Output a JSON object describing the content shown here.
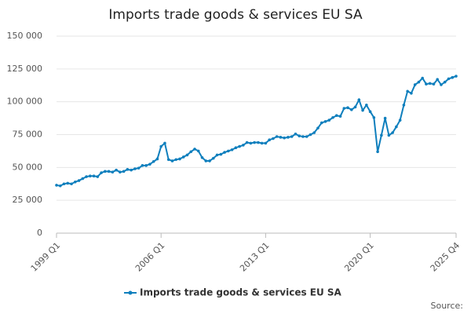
{
  "chart_data": {
    "type": "line",
    "title": "Imports trade goods & services EU SA",
    "categories": [
      "1999 Q1",
      null,
      null,
      null,
      null,
      null,
      null,
      null,
      null,
      null,
      null,
      null,
      null,
      null,
      null,
      null,
      null,
      null,
      null,
      null,
      null,
      null,
      null,
      null,
      null,
      null,
      null,
      null,
      "2006 Q1",
      null,
      null,
      null,
      null,
      null,
      null,
      null,
      null,
      null,
      null,
      null,
      null,
      null,
      null,
      null,
      null,
      null,
      null,
      null,
      null,
      null,
      null,
      null,
      null,
      null,
      null,
      null,
      "2013 Q1",
      null,
      null,
      null,
      null,
      null,
      null,
      null,
      null,
      null,
      null,
      null,
      null,
      null,
      null,
      null,
      null,
      null,
      null,
      null,
      null,
      null,
      null,
      null,
      null,
      null,
      null,
      null,
      "2020 Q1",
      null,
      null,
      null,
      null,
      null,
      null,
      null,
      null,
      null,
      null,
      null,
      null,
      null,
      null,
      null,
      null,
      null,
      null,
      null,
      null,
      null,
      null,
      "2025 Q4"
    ],
    "series": [
      {
        "name": "Imports trade goods & services EU SA",
        "color": "#0f7fbd",
        "values": [
          36500,
          36000,
          37500,
          38000,
          37500,
          39000,
          40000,
          41500,
          43000,
          43500,
          43500,
          43000,
          46000,
          47000,
          47000,
          46500,
          48000,
          46500,
          47000,
          48500,
          48000,
          49000,
          49500,
          51500,
          51500,
          52500,
          54500,
          56500,
          66000,
          68500,
          56000,
          55000,
          56000,
          56500,
          58000,
          59500,
          62000,
          64000,
          62500,
          57500,
          55000,
          55000,
          57000,
          59500,
          60000,
          61500,
          62500,
          63500,
          65000,
          66000,
          67000,
          69000,
          68500,
          69000,
          69000,
          68500,
          68500,
          71000,
          72000,
          73500,
          73000,
          72500,
          73000,
          73500,
          75500,
          74000,
          73500,
          73500,
          75000,
          76500,
          80000,
          84000,
          85000,
          86000,
          88000,
          89500,
          89000,
          95000,
          95500,
          94000,
          96000,
          101500,
          93500,
          97500,
          92500,
          88000,
          62000,
          74500,
          87500,
          74500,
          76500,
          81000,
          86000,
          97500,
          108000,
          106500,
          113000,
          115000,
          118000,
          113500,
          114000,
          113500,
          117000,
          113000,
          115000,
          117500,
          118500,
          119500
        ]
      }
    ],
    "ylim": [
      0,
      150000
    ],
    "yticks": [
      0,
      {
        "value": 25000,
        "label": "25 000"
      },
      {
        "value": 50000,
        "label": "50 000"
      },
      {
        "value": 75000,
        "label": "75 000"
      },
      {
        "value": 100000,
        "label": "100 000"
      },
      {
        "value": 125000,
        "label": "125 000"
      },
      {
        "value": 150000,
        "label": "150 000"
      }
    ],
    "grid": true,
    "legend": "bottom",
    "source": "Source:"
  }
}
